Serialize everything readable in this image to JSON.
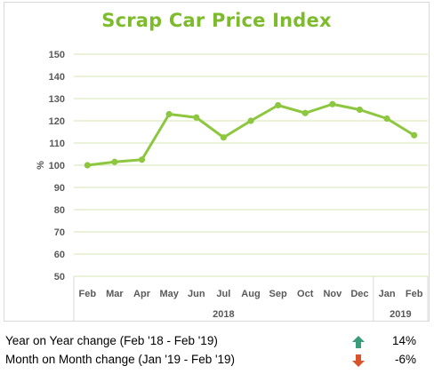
{
  "chart_data": {
    "type": "line",
    "title": "Scrap Car Price Index",
    "ylabel": "%",
    "ylim": [
      50,
      150
    ],
    "yticks": [
      50,
      60,
      70,
      80,
      90,
      100,
      110,
      120,
      130,
      140,
      150
    ],
    "categories": [
      "Feb",
      "Mar",
      "Apr",
      "May",
      "Jun",
      "Jul",
      "Aug",
      "Sep",
      "Oct",
      "Nov",
      "Dec",
      "Jan",
      "Feb"
    ],
    "year_groups": [
      {
        "label": "2018",
        "count": 11
      },
      {
        "label": "2019",
        "count": 2
      }
    ],
    "series": [
      {
        "values": [
          100,
          101.5,
          102.5,
          123,
          121.5,
          112.5,
          120,
          127,
          123.5,
          127.5,
          125,
          121,
          113.5
        ]
      }
    ],
    "grid": true,
    "colors": {
      "line": "#8dc63f",
      "title": "#7dbb2c",
      "grid": "#d6e4b4"
    }
  },
  "summary": [
    {
      "label": "Year on Year change (Feb '18 - Feb '19)",
      "direction": "up",
      "value": "14%",
      "arrow_color": "#3a9c7b"
    },
    {
      "label": "Month on Month change (Jan '19 - Feb '19)",
      "direction": "down",
      "value": "-6%",
      "arrow_color": "#d9532b"
    }
  ]
}
